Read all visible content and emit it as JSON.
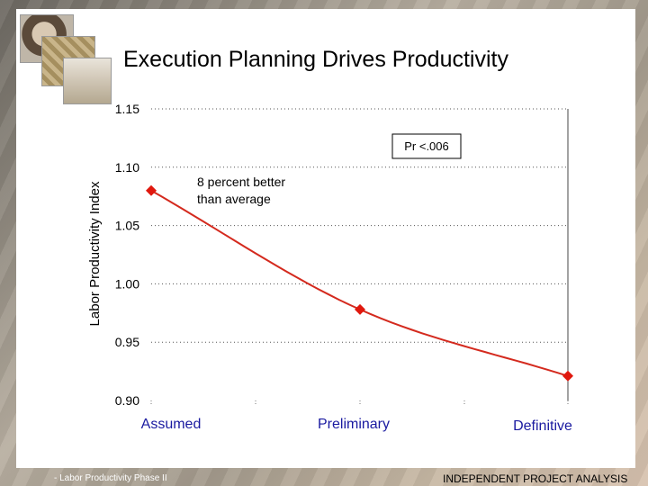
{
  "slide": {
    "title": "Execution Planning Drives Productivity",
    "footer_left": "- Labor Productivity Phase II",
    "footer_right": "INDEPENDENT PROJECT ANALYSIS"
  },
  "chart_data": {
    "type": "line",
    "title": "Execution Planning Drives Productivity",
    "xlabel": "",
    "ylabel": "Labor Productivity Index",
    "categories": [
      "Assumed",
      "Preliminary",
      "Definitive"
    ],
    "series": [
      {
        "values": [
          1.08,
          0.978,
          0.921
        ]
      }
    ],
    "ylim": [
      0.9,
      1.15
    ],
    "yticks": [
      "0.90",
      "0.95",
      "1.00",
      "1.05",
      "1.10",
      "1.15"
    ],
    "grid": true,
    "annotations": {
      "pvalue": "Pr <.006",
      "callout_line1": "8 percent better",
      "callout_line2": "than average"
    },
    "colors": {
      "line": "#d42a1e",
      "marker": "#e0180e"
    }
  }
}
